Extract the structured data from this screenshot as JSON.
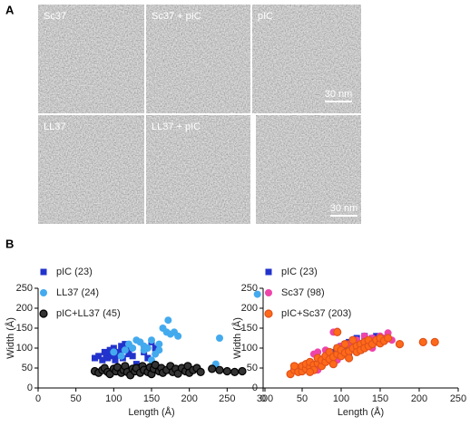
{
  "panel_labels": [
    "A",
    "B"
  ],
  "micrographs": [
    {
      "label": "Sc37"
    },
    {
      "label": "Sc37 + pIC"
    },
    {
      "label": "pIC",
      "scale_bar": "30 nm"
    },
    {
      "label": "LL37"
    },
    {
      "label": "LL37 + pIC"
    },
    {
      "scale_bar": "30 nm"
    }
  ],
  "chart_data": [
    {
      "type": "scatter",
      "xlabel": "Length (Å)",
      "ylabel": "Width (Å)",
      "xlim": [
        0,
        300
      ],
      "xticks": [
        0,
        50,
        100,
        150,
        200,
        250,
        300
      ],
      "ylim": [
        0,
        250
      ],
      "yticks": [
        0,
        50,
        100,
        150,
        200,
        250
      ],
      "series": [
        {
          "name": "pIC (23)",
          "color": "#2233cc",
          "marker": "square",
          "x": [
            75,
            80,
            85,
            88,
            90,
            92,
            95,
            98,
            100,
            102,
            105,
            108,
            110,
            112,
            115,
            118,
            120,
            125,
            130,
            140,
            145,
            150,
            155
          ],
          "values": [
            75,
            80,
            70,
            90,
            85,
            75,
            95,
            80,
            100,
            70,
            85,
            90,
            105,
            75,
            110,
            95,
            85,
            80,
            60,
            90,
            75,
            115,
            100
          ]
        },
        {
          "name": "LL37 (24)",
          "color": "#44aaee",
          "marker": "circle",
          "x": [
            100,
            110,
            115,
            120,
            125,
            130,
            135,
            140,
            145,
            150,
            155,
            160,
            165,
            170,
            172,
            175,
            180,
            185,
            160,
            150,
            140,
            240,
            235,
            290
          ],
          "values": [
            90,
            80,
            95,
            110,
            100,
            120,
            115,
            105,
            100,
            120,
            85,
            110,
            150,
            140,
            170,
            135,
            140,
            130,
            95,
            70,
            95,
            125,
            60,
            235
          ]
        },
        {
          "name": "pIC+LL37 (45)",
          "color": "#333333",
          "edgecolor": "#000000",
          "marker": "circle",
          "x": [
            75,
            80,
            85,
            88,
            92,
            95,
            100,
            103,
            105,
            110,
            113,
            115,
            118,
            122,
            125,
            128,
            130,
            135,
            138,
            140,
            145,
            148,
            150,
            153,
            155,
            160,
            163,
            165,
            170,
            175,
            178,
            182,
            185,
            190,
            195,
            198,
            200,
            205,
            210,
            215,
            230,
            240,
            250,
            260,
            270
          ],
          "values": [
            42,
            38,
            45,
            50,
            40,
            35,
            48,
            42,
            52,
            38,
            45,
            55,
            40,
            32,
            48,
            42,
            50,
            38,
            55,
            45,
            40,
            52,
            35,
            48,
            58,
            42,
            50,
            38,
            45,
            55,
            40,
            48,
            36,
            50,
            42,
            55,
            38,
            45,
            50,
            40,
            48,
            45,
            42,
            40,
            42
          ]
        }
      ]
    },
    {
      "type": "scatter",
      "xlabel": "Length (Å)",
      "ylabel": "Width (Å)",
      "xlim": [
        0,
        250
      ],
      "xticks": [
        0,
        50,
        100,
        150,
        200,
        250
      ],
      "ylim": [
        0,
        250
      ],
      "yticks": [
        0,
        50,
        100,
        150,
        200,
        250
      ],
      "series": [
        {
          "name": "pIC (23)",
          "color": "#2233cc",
          "marker": "square",
          "x": [
            90,
            95,
            100,
            100,
            105,
            105,
            110,
            110,
            115,
            115,
            120,
            120,
            125,
            125,
            130,
            130,
            135,
            135,
            140,
            140,
            145,
            145,
            150
          ],
          "values": [
            90,
            100,
            85,
            105,
            95,
            110,
            90,
            115,
            100,
            120,
            105,
            125,
            110,
            95,
            115,
            130,
            120,
            105,
            125,
            110,
            120,
            130,
            125
          ]
        },
        {
          "name": "Sc37 (98)",
          "color": "#ee44aa",
          "marker": "circle",
          "x": [
            90,
            95,
            130,
            140,
            150,
            160,
            155,
            165,
            120,
            110,
            100,
            70,
            80,
            60,
            75,
            85,
            125,
            135,
            145,
            105,
            115,
            140,
            95,
            65,
            70
          ],
          "values": [
            140,
            142,
            130,
            125,
            130,
            138,
            125,
            120,
            120,
            110,
            105,
            90,
            95,
            50,
            60,
            85,
            110,
            115,
            115,
            90,
            100,
            100,
            70,
            85,
            45
          ]
        },
        {
          "name": "pIC+Sc37 (203)",
          "color": "#ff6a1a",
          "edgecolor": "#e0521a",
          "marker": "circle",
          "x": [
            35,
            40,
            45,
            45,
            50,
            50,
            55,
            55,
            60,
            60,
            65,
            65,
            70,
            70,
            75,
            75,
            80,
            80,
            85,
            85,
            90,
            90,
            95,
            95,
            95,
            100,
            100,
            105,
            105,
            110,
            110,
            115,
            115,
            120,
            120,
            125,
            125,
            130,
            130,
            135,
            135,
            140,
            145,
            150,
            150,
            155,
            160,
            175,
            205,
            220,
            40,
            60
          ],
          "values": [
            35,
            45,
            50,
            40,
            42,
            55,
            48,
            60,
            52,
            65,
            58,
            45,
            62,
            75,
            55,
            70,
            65,
            80,
            72,
            90,
            78,
            60,
            85,
            100,
            140,
            80,
            95,
            88,
            110,
            92,
            75,
            100,
            120,
            105,
            90,
            110,
            95,
            115,
            100,
            105,
            120,
            110,
            120,
            112,
            125,
            118,
            125,
            110,
            115,
            115,
            55,
            40
          ]
        }
      ]
    }
  ]
}
